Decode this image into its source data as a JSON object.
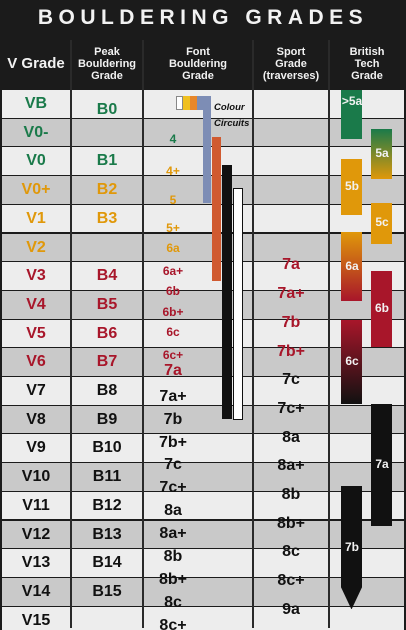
{
  "title": "BOULDERING GRADES",
  "headers": [
    "V Grade",
    "Peak",
    "Bouldering",
    "Grade",
    "Font",
    "Bouldering",
    "Grade",
    "Sport",
    "Grade",
    "(traverses)",
    "British",
    "Tech",
    "Grade"
  ],
  "colour_circuits": [
    "Colour",
    "Circuits"
  ],
  "colors": {
    "green": "#1a7a4a",
    "amber": "#e0980a",
    "red": "#a8162a",
    "black": "#111111",
    "row_light": "#ededed",
    "row_shade": "#c9c9c9"
  },
  "rows": [
    {
      "v": "VB",
      "peak": "B0",
      "color": "green"
    },
    {
      "v": "V0-",
      "peak": "",
      "color": "green"
    },
    {
      "v": "V0",
      "peak": "B1",
      "color": "green"
    },
    {
      "v": "V0+",
      "peak": "B2",
      "color": "amber"
    },
    {
      "v": "V1",
      "peak": "B3",
      "color": "amber"
    },
    {
      "v": "V2",
      "peak": "",
      "color": "amber"
    },
    {
      "v": "V3",
      "peak": "B4",
      "color": "red"
    },
    {
      "v": "V4",
      "peak": "B5",
      "color": "red"
    },
    {
      "v": "V5",
      "peak": "B6",
      "color": "red"
    },
    {
      "v": "V6",
      "peak": "B7",
      "color": "red"
    },
    {
      "v": "V7",
      "peak": "B8",
      "color": "black"
    },
    {
      "v": "V8",
      "peak": "B9",
      "color": "black"
    },
    {
      "v": "V9",
      "peak": "B10",
      "color": "black"
    },
    {
      "v": "V10",
      "peak": "B11",
      "color": "black"
    },
    {
      "v": "V11",
      "peak": "B12",
      "color": "black"
    },
    {
      "v": "V12",
      "peak": "B13",
      "color": "black"
    },
    {
      "v": "V13",
      "peak": "B14",
      "color": "black"
    },
    {
      "v": "V14",
      "peak": "B15",
      "color": "black"
    },
    {
      "v": "V15",
      "peak": "",
      "color": "black"
    }
  ],
  "font_grades": [
    {
      "label": "4",
      "color": "green",
      "pos": 1.3,
      "size": 12
    },
    {
      "label": "4+",
      "color": "amber",
      "pos": 2.4,
      "size": 12
    },
    {
      "label": "5",
      "color": "amber",
      "pos": 3.4,
      "size": 12
    },
    {
      "label": "5+",
      "color": "amber",
      "pos": 4.4,
      "size": 12
    },
    {
      "label": "6a",
      "color": "amber",
      "pos": 5.1,
      "size": 12
    },
    {
      "label": "6a+",
      "color": "red",
      "pos": 5.9,
      "size": 12
    },
    {
      "label": "6b",
      "color": "red",
      "pos": 6.6,
      "size": 12
    },
    {
      "label": "6b+",
      "color": "red",
      "pos": 7.3,
      "size": 12
    },
    {
      "label": "6c",
      "color": "red",
      "pos": 8.0,
      "size": 12
    },
    {
      "label": "6c+",
      "color": "red",
      "pos": 8.8,
      "size": 12
    },
    {
      "label": "7a",
      "color": "red",
      "pos": 9.4,
      "size": 16
    },
    {
      "label": "7a+",
      "color": "black",
      "pos": 10.3,
      "size": 16
    },
    {
      "label": "7b",
      "color": "black",
      "pos": 11.1,
      "size": 16
    },
    {
      "label": "7b+",
      "color": "black",
      "pos": 11.9,
      "size": 16
    },
    {
      "label": "7c",
      "color": "black",
      "pos": 12.7,
      "size": 16
    },
    {
      "label": "7c+",
      "color": "black",
      "pos": 13.5,
      "size": 16
    },
    {
      "label": "8a",
      "color": "black",
      "pos": 14.3,
      "size": 16
    },
    {
      "label": "8a+",
      "color": "black",
      "pos": 15.1,
      "size": 16
    },
    {
      "label": "8b",
      "color": "black",
      "pos": 15.9,
      "size": 16
    },
    {
      "label": "8b+",
      "color": "black",
      "pos": 16.7,
      "size": 16
    },
    {
      "label": "8c",
      "color": "black",
      "pos": 17.5,
      "size": 16
    },
    {
      "label": "8c+",
      "color": "black",
      "pos": 18.3,
      "size": 16
    }
  ],
  "sport_grades": [
    {
      "label": "7a",
      "color": "red",
      "pos": 5.8
    },
    {
      "label": "7a+",
      "color": "red",
      "pos": 6.8
    },
    {
      "label": "7b",
      "color": "red",
      "pos": 7.8
    },
    {
      "label": "7b+",
      "color": "red",
      "pos": 8.8
    },
    {
      "label": "7c",
      "color": "black",
      "pos": 9.8
    },
    {
      "label": "7c+",
      "color": "black",
      "pos": 10.8
    },
    {
      "label": "8a",
      "color": "black",
      "pos": 11.8
    },
    {
      "label": "8a+",
      "color": "black",
      "pos": 12.8
    },
    {
      "label": "8b",
      "color": "black",
      "pos": 13.8
    },
    {
      "label": "8b+",
      "color": "black",
      "pos": 14.8
    },
    {
      "label": "8c",
      "color": "black",
      "pos": 15.8
    },
    {
      "label": "8c+",
      "color": "black",
      "pos": 16.8
    },
    {
      "label": "9a",
      "color": "black",
      "pos": 17.8
    }
  ],
  "british_grades": [
    {
      "label": ">5a",
      "from": 0.0,
      "to": 1.7,
      "colors": [
        "#1a7a4a",
        "#1a7a4a"
      ]
    },
    {
      "label": "5a",
      "from": 1.35,
      "to": 3.1,
      "colors": [
        "#1a7a4a",
        "#e0980a"
      ]
    },
    {
      "label": "5b",
      "from": 2.4,
      "to": 4.35,
      "colors": [
        "#e0980a",
        "#e0980a"
      ]
    },
    {
      "label": "5c",
      "from": 3.95,
      "to": 5.35,
      "colors": [
        "#e0980a",
        "#e0980a"
      ]
    },
    {
      "label": "6a",
      "from": 4.95,
      "to": 7.35,
      "colors": [
        "#e0980a",
        "#a8162a"
      ]
    },
    {
      "label": "6b",
      "from": 6.3,
      "to": 8.95,
      "colors": [
        "#a8162a",
        "#a8162a"
      ]
    },
    {
      "label": "6c",
      "from": 8.0,
      "to": 10.95,
      "colors": [
        "#a8162a",
        "#111111"
      ]
    },
    {
      "label": "7a",
      "from": 10.95,
      "to": 15.2,
      "colors": [
        "#111111",
        "#111111"
      ]
    },
    {
      "label": "7b",
      "from": 13.8,
      "to": 18.1,
      "colors": [
        "#111111",
        "#111111"
      ]
    }
  ]
}
